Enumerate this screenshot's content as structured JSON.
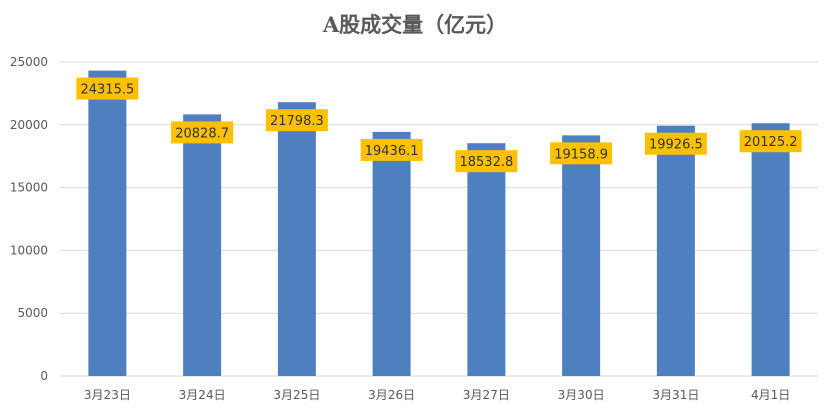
{
  "chart_data": {
    "type": "bar",
    "title": "A股成交量（亿元）",
    "xlabel": "",
    "ylabel": "",
    "categories": [
      "3月23日",
      "3月24日",
      "3月25日",
      "3月26日",
      "3月27日",
      "3月30日",
      "3月31日",
      "4月1日"
    ],
    "values": [
      24315.5,
      20828.7,
      21798.3,
      19436.1,
      18532.8,
      19158.9,
      19926.5,
      20125.2
    ],
    "data_labels": [
      "24315.5",
      "20828.7",
      "21798.3",
      "19436.1",
      "18532.8",
      "19158.9",
      "19926.5",
      "20125.2"
    ],
    "ylim": [
      0,
      25000
    ],
    "yticks": [
      0,
      5000,
      10000,
      15000,
      20000,
      25000
    ],
    "ytick_labels": [
      "0",
      "5000",
      "10000",
      "15000",
      "20000",
      "25000"
    ],
    "grid": true,
    "legend": "none",
    "colors": {
      "bar": "#4e7fbf",
      "label_bg": "#ffc000",
      "label_text": "#333333",
      "grid": "#d9d9d9",
      "axis_text": "#595959",
      "title": "#595959"
    }
  }
}
